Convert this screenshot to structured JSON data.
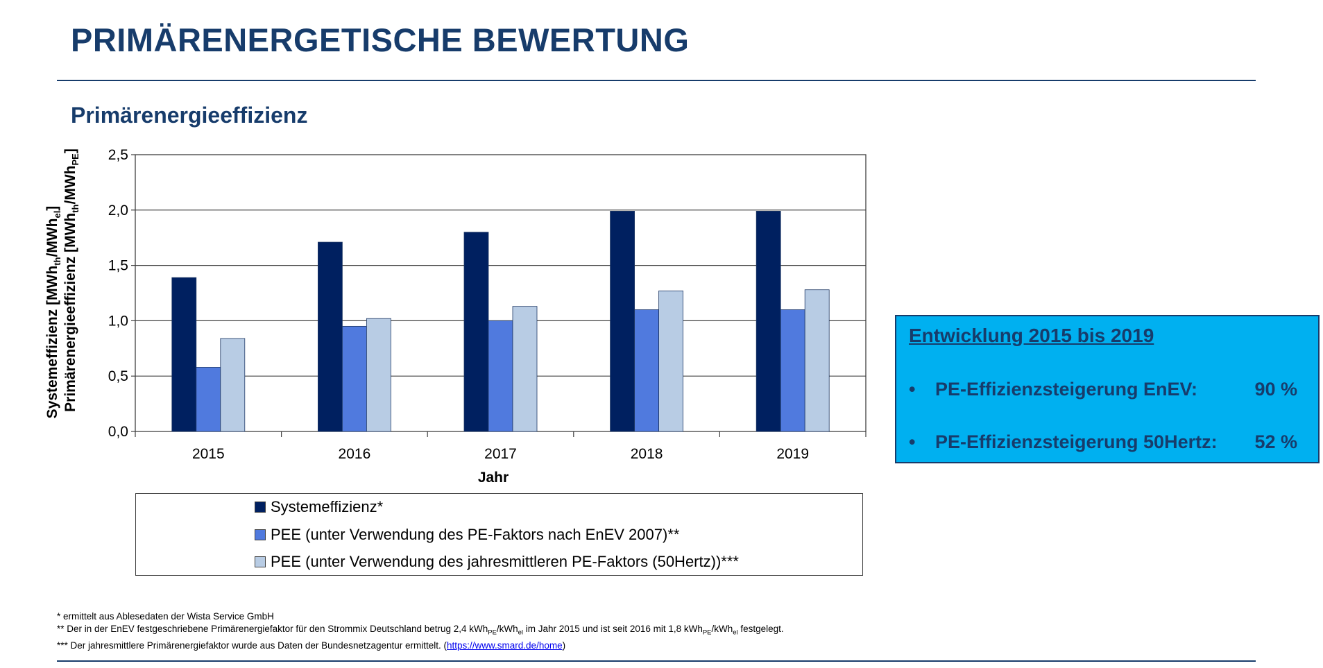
{
  "page": {
    "title": "PRIMÄRENERGETISCHE BEWERTUNG",
    "subtitle": "Primärenergieeffizienz",
    "colors": {
      "heading": "#173C6B",
      "infobox_bg": "#00B0F0"
    }
  },
  "chart_data": {
    "type": "bar",
    "title": "",
    "xlabel": "Jahr",
    "ylabel_line1": {
      "main": "Systemeffizienz [MWh",
      "s1": "th",
      "m2": "/MWh",
      "s2": "el",
      "end": "]"
    },
    "ylabel_line2": {
      "main": "Primärenergieeffizienz [MWh",
      "s1": "th",
      "m2": "/MWh",
      "s2": "PE",
      "end": "]"
    },
    "categories": [
      "2015",
      "2016",
      "2017",
      "2018",
      "2019"
    ],
    "ylim": [
      0,
      2.5
    ],
    "yticks": [
      "0,0",
      "0,5",
      "1,0",
      "1,5",
      "2,0",
      "2,5"
    ],
    "ytick_values": [
      0,
      0.5,
      1.0,
      1.5,
      2.0,
      2.5
    ],
    "grid": true,
    "legend_position": "bottom",
    "series": [
      {
        "name": "Systemeffizienz*",
        "color": "#002060",
        "values": [
          1.39,
          1.71,
          1.8,
          1.99,
          1.99
        ]
      },
      {
        "name": "PEE (unter Verwendung des PE-Faktors nach EnEV 2007)**",
        "color": "#507ADE",
        "values": [
          0.58,
          0.95,
          1.0,
          1.1,
          1.1
        ]
      },
      {
        "name": "PEE (unter Verwendung des jahresmittleren PE-Faktors (50Hertz))***",
        "color": "#B8CCE4",
        "values": [
          0.84,
          1.02,
          1.13,
          1.27,
          1.28
        ]
      }
    ]
  },
  "infobox": {
    "title": "Entwicklung 2015 bis 2019",
    "bullet": "•",
    "items": [
      {
        "label": "PE-Effizienzsteigerung EnEV:",
        "value": "90 %"
      },
      {
        "label": "PE-Effizienzsteigerung 50Hertz:",
        "value": "52 %"
      }
    ]
  },
  "footnotes": {
    "line1": "* ermittelt aus Ablesedaten der Wista Service GmbH",
    "line2": {
      "t1": "** Der in der EnEV festgeschriebene Primärenergiefaktor  für den Strommix Deutschland betrug 2,4 kWh",
      "s1": "PE",
      "t2": "/kWh",
      "s2": "el",
      "t3": " im Jahr 2015 und ist seit 2016 mit 1,8 kWh",
      "s3": "PE",
      "t4": "/kWh",
      "s4": "el",
      "t5": " festgelegt."
    },
    "line3": {
      "text": "*** Der jahresmittlere Primärenergiefaktor  wurde aus Daten der Bundesnetzagentur ermittelt. (",
      "link": "https://www.smard.de/home",
      "close": ")"
    }
  }
}
